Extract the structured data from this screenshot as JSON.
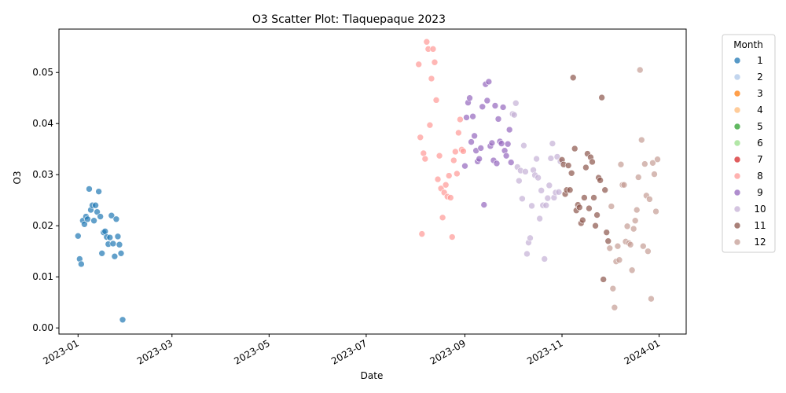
{
  "chart_data": {
    "type": "scatter",
    "title": "O3 Scatter Plot: Tlaquepaque 2023",
    "xlabel": "Date",
    "ylabel": "O3",
    "xlim": [
      "2022-12-20",
      "2024-01-18"
    ],
    "ylim": [
      -0.0012,
      0.0585
    ],
    "x_ticks": [
      "2023-01",
      "2023-03",
      "2023-05",
      "2023-07",
      "2023-09",
      "2023-11",
      "2024-01"
    ],
    "x_tick_dates": [
      "2023-01-01",
      "2023-03-01",
      "2023-05-01",
      "2023-07-01",
      "2023-09-01",
      "2023-11-01",
      "2024-01-01"
    ],
    "y_ticks": [
      "0.00",
      "0.01",
      "0.02",
      "0.03",
      "0.04",
      "0.05"
    ],
    "y_tick_values": [
      0.0,
      0.01,
      0.02,
      0.03,
      0.04,
      0.05
    ],
    "grid": false,
    "legend": {
      "title": "Month",
      "placement": "outside-right",
      "entries": [
        {
          "label": "1",
          "color": "#1f77b4"
        },
        {
          "label": "2",
          "color": "#aec7e8"
        },
        {
          "label": "3",
          "color": "#ff7f0e"
        },
        {
          "label": "4",
          "color": "#ffbb78"
        },
        {
          "label": "5",
          "color": "#2ca02c"
        },
        {
          "label": "6",
          "color": "#98df8a"
        },
        {
          "label": "7",
          "color": "#d62728"
        },
        {
          "label": "8",
          "color": "#ff9896"
        },
        {
          "label": "9",
          "color": "#9467bd"
        },
        {
          "label": "10",
          "color": "#c5b0d5"
        },
        {
          "label": "11",
          "color": "#8c564b"
        },
        {
          "label": "12",
          "color": "#c49c94"
        }
      ]
    },
    "series": [
      {
        "name": "1",
        "color": "#1f77b4",
        "points": [
          [
            "2023-01-01",
            0.018
          ],
          [
            "2023-01-02",
            0.0135
          ],
          [
            "2023-01-03",
            0.0125
          ],
          [
            "2023-01-04",
            0.021
          ],
          [
            "2023-01-05",
            0.0203
          ],
          [
            "2023-01-06",
            0.0218
          ],
          [
            "2023-01-07",
            0.0213
          ],
          [
            "2023-01-08",
            0.0272
          ],
          [
            "2023-01-09",
            0.0231
          ],
          [
            "2023-01-10",
            0.024
          ],
          [
            "2023-01-11",
            0.021
          ],
          [
            "2023-01-12",
            0.024
          ],
          [
            "2023-01-13",
            0.0227
          ],
          [
            "2023-01-14",
            0.0267
          ],
          [
            "2023-01-15",
            0.0218
          ],
          [
            "2023-01-16",
            0.0146
          ],
          [
            "2023-01-17",
            0.0187
          ],
          [
            "2023-01-18",
            0.0189
          ],
          [
            "2023-01-19",
            0.0178
          ],
          [
            "2023-01-20",
            0.0164
          ],
          [
            "2023-01-21",
            0.0177
          ],
          [
            "2023-01-22",
            0.022
          ],
          [
            "2023-01-23",
            0.0165
          ],
          [
            "2023-01-24",
            0.014
          ],
          [
            "2023-01-25",
            0.0213
          ],
          [
            "2023-01-26",
            0.0179
          ],
          [
            "2023-01-27",
            0.0163
          ],
          [
            "2023-01-28",
            0.0146
          ],
          [
            "2023-01-29",
            0.0016
          ]
        ]
      },
      {
        "name": "8",
        "color": "#ff9896",
        "points": [
          [
            "2023-08-03",
            0.0516
          ],
          [
            "2023-08-04",
            0.0373
          ],
          [
            "2023-08-05",
            0.0184
          ],
          [
            "2023-08-06",
            0.0342
          ],
          [
            "2023-08-07",
            0.0331
          ],
          [
            "2023-08-08",
            0.056
          ],
          [
            "2023-08-09",
            0.0546
          ],
          [
            "2023-08-10",
            0.0397
          ],
          [
            "2023-08-11",
            0.0488
          ],
          [
            "2023-08-12",
            0.0546
          ],
          [
            "2023-08-13",
            0.052
          ],
          [
            "2023-08-14",
            0.0446
          ],
          [
            "2023-08-15",
            0.0291
          ],
          [
            "2023-08-16",
            0.0337
          ],
          [
            "2023-08-17",
            0.0273
          ],
          [
            "2023-08-18",
            0.0216
          ],
          [
            "2023-08-19",
            0.0265
          ],
          [
            "2023-08-20",
            0.028
          ],
          [
            "2023-08-21",
            0.0257
          ],
          [
            "2023-08-22",
            0.0298
          ],
          [
            "2023-08-23",
            0.0255
          ],
          [
            "2023-08-24",
            0.0178
          ],
          [
            "2023-08-25",
            0.0328
          ],
          [
            "2023-08-26",
            0.0345
          ],
          [
            "2023-08-27",
            0.0302
          ],
          [
            "2023-08-28",
            0.0382
          ],
          [
            "2023-08-29",
            0.0408
          ],
          [
            "2023-08-30",
            0.0349
          ],
          [
            "2023-08-31",
            0.0346
          ]
        ]
      },
      {
        "name": "9",
        "color": "#9467bd",
        "points": [
          [
            "2023-09-01",
            0.0317
          ],
          [
            "2023-09-02",
            0.0412
          ],
          [
            "2023-09-03",
            0.0441
          ],
          [
            "2023-09-04",
            0.045
          ],
          [
            "2023-09-05",
            0.0364
          ],
          [
            "2023-09-06",
            0.0414
          ],
          [
            "2023-09-07",
            0.0376
          ],
          [
            "2023-09-08",
            0.0347
          ],
          [
            "2023-09-09",
            0.0326
          ],
          [
            "2023-09-10",
            0.0331
          ],
          [
            "2023-09-11",
            0.0352
          ],
          [
            "2023-09-12",
            0.0433
          ],
          [
            "2023-09-13",
            0.0241
          ],
          [
            "2023-09-14",
            0.0477
          ],
          [
            "2023-09-15",
            0.0445
          ],
          [
            "2023-09-16",
            0.0482
          ],
          [
            "2023-09-17",
            0.0356
          ],
          [
            "2023-09-18",
            0.0362
          ],
          [
            "2023-09-19",
            0.0328
          ],
          [
            "2023-09-20",
            0.0435
          ],
          [
            "2023-09-21",
            0.0322
          ],
          [
            "2023-09-22",
            0.0409
          ],
          [
            "2023-09-23",
            0.0365
          ],
          [
            "2023-09-24",
            0.0361
          ],
          [
            "2023-09-25",
            0.0432
          ],
          [
            "2023-09-26",
            0.0347
          ],
          [
            "2023-09-27",
            0.0337
          ],
          [
            "2023-09-28",
            0.036
          ],
          [
            "2023-09-29",
            0.0388
          ],
          [
            "2023-09-30",
            0.0324
          ]
        ]
      },
      {
        "name": "10",
        "color": "#c5b0d5",
        "points": [
          [
            "2023-10-01",
            0.0419
          ],
          [
            "2023-10-02",
            0.0417
          ],
          [
            "2023-10-03",
            0.044
          ],
          [
            "2023-10-04",
            0.0315
          ],
          [
            "2023-10-05",
            0.0288
          ],
          [
            "2023-10-06",
            0.0308
          ],
          [
            "2023-10-07",
            0.0253
          ],
          [
            "2023-10-08",
            0.0357
          ],
          [
            "2023-10-09",
            0.0306
          ],
          [
            "2023-10-10",
            0.0145
          ],
          [
            "2023-10-11",
            0.0167
          ],
          [
            "2023-10-12",
            0.0176
          ],
          [
            "2023-10-13",
            0.0239
          ],
          [
            "2023-10-14",
            0.0309
          ],
          [
            "2023-10-15",
            0.0299
          ],
          [
            "2023-10-16",
            0.0331
          ],
          [
            "2023-10-17",
            0.0294
          ],
          [
            "2023-10-18",
            0.0214
          ],
          [
            "2023-10-19",
            0.0269
          ],
          [
            "2023-10-20",
            0.024
          ],
          [
            "2023-10-21",
            0.0135
          ],
          [
            "2023-10-22",
            0.024
          ],
          [
            "2023-10-23",
            0.0254
          ],
          [
            "2023-10-24",
            0.0279
          ],
          [
            "2023-10-25",
            0.0332
          ],
          [
            "2023-10-26",
            0.0361
          ],
          [
            "2023-10-27",
            0.0255
          ],
          [
            "2023-10-28",
            0.0265
          ],
          [
            "2023-10-29",
            0.0335
          ],
          [
            "2023-10-30",
            0.0266
          ],
          [
            "2023-10-31",
            0.0326
          ]
        ]
      },
      {
        "name": "11",
        "color": "#8c564b",
        "points": [
          [
            "2023-11-01",
            0.0329
          ],
          [
            "2023-11-02",
            0.032
          ],
          [
            "2023-11-03",
            0.0262
          ],
          [
            "2023-11-04",
            0.027
          ],
          [
            "2023-11-05",
            0.0318
          ],
          [
            "2023-11-06",
            0.027
          ],
          [
            "2023-11-07",
            0.0303
          ],
          [
            "2023-11-08",
            0.049
          ],
          [
            "2023-11-09",
            0.0351
          ],
          [
            "2023-11-10",
            0.023
          ],
          [
            "2023-11-11",
            0.0241
          ],
          [
            "2023-11-12",
            0.0236
          ],
          [
            "2023-11-13",
            0.0205
          ],
          [
            "2023-11-14",
            0.0211
          ],
          [
            "2023-11-15",
            0.0255
          ],
          [
            "2023-11-16",
            0.0314
          ],
          [
            "2023-11-17",
            0.0341
          ],
          [
            "2023-11-18",
            0.0234
          ],
          [
            "2023-11-19",
            0.0334
          ],
          [
            "2023-11-20",
            0.0325
          ],
          [
            "2023-11-21",
            0.0255
          ],
          [
            "2023-11-22",
            0.02
          ],
          [
            "2023-11-23",
            0.0221
          ],
          [
            "2023-11-24",
            0.0294
          ],
          [
            "2023-11-25",
            0.0289
          ],
          [
            "2023-11-26",
            0.0451
          ],
          [
            "2023-11-27",
            0.0095
          ],
          [
            "2023-11-28",
            0.027
          ],
          [
            "2023-11-29",
            0.0187
          ],
          [
            "2023-11-30",
            0.017
          ]
        ]
      },
      {
        "name": "12",
        "color": "#c49c94",
        "points": [
          [
            "2023-12-01",
            0.0156
          ],
          [
            "2023-12-02",
            0.0238
          ],
          [
            "2023-12-03",
            0.0077
          ],
          [
            "2023-12-04",
            0.004
          ],
          [
            "2023-12-05",
            0.013
          ],
          [
            "2023-12-06",
            0.016
          ],
          [
            "2023-12-07",
            0.0133
          ],
          [
            "2023-12-08",
            0.032
          ],
          [
            "2023-12-09",
            0.028
          ],
          [
            "2023-12-10",
            0.028
          ],
          [
            "2023-12-11",
            0.0169
          ],
          [
            "2023-12-12",
            0.0199
          ],
          [
            "2023-12-13",
            0.0166
          ],
          [
            "2023-12-14",
            0.0163
          ],
          [
            "2023-12-15",
            0.0113
          ],
          [
            "2023-12-16",
            0.0194
          ],
          [
            "2023-12-17",
            0.021
          ],
          [
            "2023-12-18",
            0.0231
          ],
          [
            "2023-12-19",
            0.0295
          ],
          [
            "2023-12-20",
            0.0505
          ],
          [
            "2023-12-21",
            0.0368
          ],
          [
            "2023-12-22",
            0.016
          ],
          [
            "2023-12-23",
            0.0321
          ],
          [
            "2023-12-24",
            0.0259
          ],
          [
            "2023-12-25",
            0.015
          ],
          [
            "2023-12-26",
            0.0252
          ],
          [
            "2023-12-27",
            0.0057
          ],
          [
            "2023-12-28",
            0.0323
          ],
          [
            "2023-12-29",
            0.0301
          ],
          [
            "2023-12-30",
            0.0228
          ],
          [
            "2023-12-31",
            0.033
          ]
        ]
      }
    ]
  }
}
